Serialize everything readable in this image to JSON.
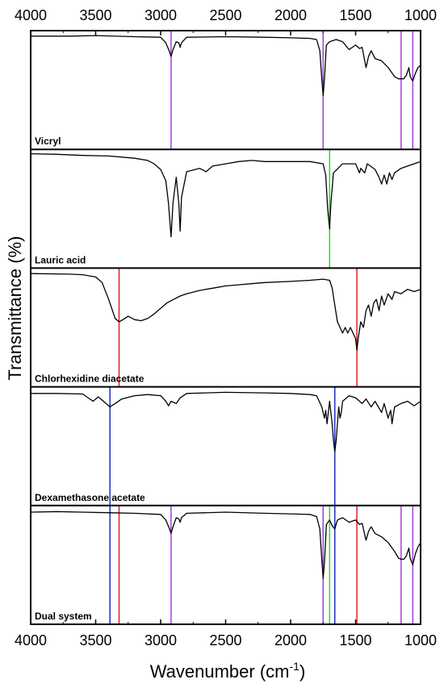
{
  "chart_data": {
    "type": "line",
    "xlabel_main": "Wavenumber (cm",
    "xlabel_sup": "-1",
    "xlabel_end": ")",
    "ylabel": "Transmittance (%)",
    "xlim": [
      4000,
      1000
    ],
    "x_reversed": true,
    "xticks": [
      4000,
      3500,
      3000,
      2500,
      2000,
      1500,
      1000
    ],
    "xtick_labels": [
      "4000",
      "3500",
      "3000",
      "2500",
      "2000",
      "1500",
      "1000"
    ],
    "ticks_top": true,
    "ticks_bottom": true,
    "y_ticks_shown": false,
    "marker_colors": {
      "purple": "#a040e0",
      "green": "#20e020",
      "red": "#e02020",
      "blue": "#2030c0"
    },
    "panels": [
      {
        "label": "Vicryl",
        "markers": [
          {
            "x": 2920,
            "color": "purple"
          },
          {
            "x": 1750,
            "color": "purple"
          },
          {
            "x": 1150,
            "color": "purple"
          },
          {
            "x": 1060,
            "color": "purple"
          }
        ],
        "spectrum": [
          [
            4000,
            0.98
          ],
          [
            3700,
            0.98
          ],
          [
            3500,
            0.985
          ],
          [
            3200,
            0.975
          ],
          [
            3000,
            0.97
          ],
          [
            2960,
            0.92
          ],
          [
            2935,
            0.85
          ],
          [
            2920,
            0.8
          ],
          [
            2905,
            0.86
          ],
          [
            2880,
            0.93
          ],
          [
            2860,
            0.92
          ],
          [
            2850,
            0.88
          ],
          [
            2840,
            0.92
          ],
          [
            2800,
            0.97
          ],
          [
            2500,
            0.975
          ],
          [
            2200,
            0.97
          ],
          [
            2000,
            0.965
          ],
          [
            1850,
            0.96
          ],
          [
            1800,
            0.95
          ],
          [
            1775,
            0.85
          ],
          [
            1760,
            0.6
          ],
          [
            1750,
            0.45
          ],
          [
            1740,
            0.6
          ],
          [
            1725,
            0.9
          ],
          [
            1700,
            0.93
          ],
          [
            1650,
            0.95
          ],
          [
            1600,
            0.93
          ],
          [
            1550,
            0.86
          ],
          [
            1500,
            0.9
          ],
          [
            1470,
            0.87
          ],
          [
            1450,
            0.88
          ],
          [
            1420,
            0.7
          ],
          [
            1400,
            0.8
          ],
          [
            1380,
            0.85
          ],
          [
            1350,
            0.78
          ],
          [
            1300,
            0.76
          ],
          [
            1250,
            0.7
          ],
          [
            1200,
            0.62
          ],
          [
            1170,
            0.6
          ],
          [
            1150,
            0.6
          ],
          [
            1130,
            0.6
          ],
          [
            1110,
            0.63
          ],
          [
            1090,
            0.7
          ],
          [
            1080,
            0.62
          ],
          [
            1060,
            0.58
          ],
          [
            1040,
            0.65
          ],
          [
            1020,
            0.7
          ],
          [
            1000,
            0.72
          ]
        ]
      },
      {
        "label": "Lauric acid",
        "markers": [
          {
            "x": 1700,
            "color": "green"
          }
        ],
        "spectrum": [
          [
            4000,
            0.99
          ],
          [
            3800,
            0.985
          ],
          [
            3600,
            0.975
          ],
          [
            3400,
            0.97
          ],
          [
            3200,
            0.95
          ],
          [
            3100,
            0.93
          ],
          [
            3050,
            0.9
          ],
          [
            3000,
            0.85
          ],
          [
            2960,
            0.75
          ],
          [
            2940,
            0.55
          ],
          [
            2920,
            0.25
          ],
          [
            2905,
            0.55
          ],
          [
            2880,
            0.78
          ],
          [
            2860,
            0.55
          ],
          [
            2850,
            0.3
          ],
          [
            2840,
            0.6
          ],
          [
            2800,
            0.83
          ],
          [
            2700,
            0.86
          ],
          [
            2650,
            0.83
          ],
          [
            2600,
            0.88
          ],
          [
            2500,
            0.9
          ],
          [
            2400,
            0.92
          ],
          [
            2300,
            0.93
          ],
          [
            2200,
            0.92
          ],
          [
            2000,
            0.92
          ],
          [
            1850,
            0.92
          ],
          [
            1750,
            0.9
          ],
          [
            1730,
            0.8
          ],
          [
            1715,
            0.5
          ],
          [
            1700,
            0.32
          ],
          [
            1690,
            0.55
          ],
          [
            1670,
            0.82
          ],
          [
            1600,
            0.9
          ],
          [
            1500,
            0.9
          ],
          [
            1470,
            0.82
          ],
          [
            1460,
            0.86
          ],
          [
            1430,
            0.82
          ],
          [
            1410,
            0.9
          ],
          [
            1350,
            0.85
          ],
          [
            1320,
            0.78
          ],
          [
            1300,
            0.72
          ],
          [
            1280,
            0.8
          ],
          [
            1260,
            0.72
          ],
          [
            1240,
            0.82
          ],
          [
            1220,
            0.76
          ],
          [
            1200,
            0.82
          ],
          [
            1150,
            0.86
          ],
          [
            1100,
            0.88
          ],
          [
            1050,
            0.9
          ],
          [
            1000,
            0.92
          ]
        ]
      },
      {
        "label": "Chlorhexidine diacetate",
        "markers": [
          {
            "x": 3320,
            "color": "red"
          },
          {
            "x": 1490,
            "color": "red"
          }
        ],
        "spectrum": [
          [
            4000,
            0.98
          ],
          [
            3700,
            0.975
          ],
          [
            3600,
            0.97
          ],
          [
            3500,
            0.95
          ],
          [
            3450,
            0.9
          ],
          [
            3400,
            0.75
          ],
          [
            3350,
            0.58
          ],
          [
            3320,
            0.55
          ],
          [
            3290,
            0.57
          ],
          [
            3250,
            0.6
          ],
          [
            3200,
            0.57
          ],
          [
            3150,
            0.56
          ],
          [
            3100,
            0.58
          ],
          [
            3050,
            0.62
          ],
          [
            3000,
            0.67
          ],
          [
            2950,
            0.72
          ],
          [
            2900,
            0.75
          ],
          [
            2850,
            0.78
          ],
          [
            2800,
            0.8
          ],
          [
            2700,
            0.83
          ],
          [
            2600,
            0.85
          ],
          [
            2500,
            0.87
          ],
          [
            2400,
            0.88
          ],
          [
            2300,
            0.89
          ],
          [
            2200,
            0.9
          ],
          [
            2000,
            0.91
          ],
          [
            1850,
            0.92
          ],
          [
            1750,
            0.93
          ],
          [
            1700,
            0.92
          ],
          [
            1680,
            0.85
          ],
          [
            1660,
            0.7
          ],
          [
            1640,
            0.55
          ],
          [
            1620,
            0.5
          ],
          [
            1600,
            0.45
          ],
          [
            1580,
            0.5
          ],
          [
            1560,
            0.45
          ],
          [
            1540,
            0.5
          ],
          [
            1500,
            0.4
          ],
          [
            1490,
            0.3
          ],
          [
            1480,
            0.4
          ],
          [
            1460,
            0.55
          ],
          [
            1440,
            0.5
          ],
          [
            1420,
            0.65
          ],
          [
            1400,
            0.7
          ],
          [
            1380,
            0.6
          ],
          [
            1360,
            0.72
          ],
          [
            1340,
            0.75
          ],
          [
            1320,
            0.65
          ],
          [
            1300,
            0.78
          ],
          [
            1280,
            0.7
          ],
          [
            1250,
            0.8
          ],
          [
            1220,
            0.75
          ],
          [
            1200,
            0.82
          ],
          [
            1150,
            0.8
          ],
          [
            1100,
            0.84
          ],
          [
            1050,
            0.82
          ],
          [
            1000,
            0.84
          ]
        ]
      },
      {
        "label": "Dexamethasone acetate",
        "markers": [
          {
            "x": 3390,
            "color": "blue"
          },
          {
            "x": 1660,
            "color": "blue"
          }
        ],
        "spectrum": [
          [
            4000,
            0.97
          ],
          [
            3800,
            0.97
          ],
          [
            3600,
            0.965
          ],
          [
            3520,
            0.9
          ],
          [
            3480,
            0.94
          ],
          [
            3420,
            0.88
          ],
          [
            3390,
            0.85
          ],
          [
            3350,
            0.88
          ],
          [
            3300,
            0.92
          ],
          [
            3200,
            0.95
          ],
          [
            3100,
            0.96
          ],
          [
            3000,
            0.95
          ],
          [
            2960,
            0.9
          ],
          [
            2940,
            0.86
          ],
          [
            2920,
            0.9
          ],
          [
            2880,
            0.88
          ],
          [
            2850,
            0.93
          ],
          [
            2800,
            0.97
          ],
          [
            2500,
            0.98
          ],
          [
            2200,
            0.975
          ],
          [
            2000,
            0.97
          ],
          [
            1850,
            0.96
          ],
          [
            1800,
            0.95
          ],
          [
            1760,
            0.85
          ],
          [
            1740,
            0.75
          ],
          [
            1730,
            0.82
          ],
          [
            1720,
            0.7
          ],
          [
            1710,
            0.8
          ],
          [
            1700,
            0.9
          ],
          [
            1680,
            0.7
          ],
          [
            1670,
            0.55
          ],
          [
            1660,
            0.45
          ],
          [
            1650,
            0.55
          ],
          [
            1630,
            0.85
          ],
          [
            1620,
            0.75
          ],
          [
            1610,
            0.8
          ],
          [
            1600,
            0.9
          ],
          [
            1550,
            0.95
          ],
          [
            1500,
            0.93
          ],
          [
            1450,
            0.88
          ],
          [
            1420,
            0.92
          ],
          [
            1380,
            0.85
          ],
          [
            1350,
            0.9
          ],
          [
            1300,
            0.8
          ],
          [
            1280,
            0.88
          ],
          [
            1250,
            0.75
          ],
          [
            1230,
            0.82
          ],
          [
            1220,
            0.7
          ],
          [
            1200,
            0.85
          ],
          [
            1150,
            0.88
          ],
          [
            1100,
            0.9
          ],
          [
            1050,
            0.86
          ],
          [
            1000,
            0.9
          ]
        ]
      },
      {
        "label": "Dual system",
        "markers": [
          {
            "x": 3390,
            "color": "blue"
          },
          {
            "x": 3320,
            "color": "red"
          },
          {
            "x": 2920,
            "color": "purple"
          },
          {
            "x": 1750,
            "color": "purple"
          },
          {
            "x": 1700,
            "color": "green"
          },
          {
            "x": 1660,
            "color": "blue"
          },
          {
            "x": 1490,
            "color": "red"
          },
          {
            "x": 1150,
            "color": "purple"
          },
          {
            "x": 1060,
            "color": "purple"
          }
        ],
        "spectrum": [
          [
            4000,
            0.97
          ],
          [
            3800,
            0.975
          ],
          [
            3600,
            0.97
          ],
          [
            3400,
            0.965
          ],
          [
            3200,
            0.96
          ],
          [
            3000,
            0.95
          ],
          [
            2960,
            0.9
          ],
          [
            2935,
            0.83
          ],
          [
            2920,
            0.78
          ],
          [
            2905,
            0.84
          ],
          [
            2880,
            0.92
          ],
          [
            2860,
            0.91
          ],
          [
            2850,
            0.88
          ],
          [
            2840,
            0.92
          ],
          [
            2800,
            0.96
          ],
          [
            2500,
            0.97
          ],
          [
            2200,
            0.96
          ],
          [
            2000,
            0.955
          ],
          [
            1850,
            0.95
          ],
          [
            1800,
            0.93
          ],
          [
            1775,
            0.82
          ],
          [
            1760,
            0.55
          ],
          [
            1750,
            0.38
          ],
          [
            1740,
            0.52
          ],
          [
            1725,
            0.86
          ],
          [
            1700,
            0.9
          ],
          [
            1680,
            0.85
          ],
          [
            1660,
            0.82
          ],
          [
            1640,
            0.9
          ],
          [
            1600,
            0.92
          ],
          [
            1550,
            0.88
          ],
          [
            1500,
            0.9
          ],
          [
            1470,
            0.86
          ],
          [
            1450,
            0.87
          ],
          [
            1420,
            0.72
          ],
          [
            1400,
            0.8
          ],
          [
            1380,
            0.84
          ],
          [
            1350,
            0.78
          ],
          [
            1300,
            0.75
          ],
          [
            1250,
            0.7
          ],
          [
            1200,
            0.62
          ],
          [
            1170,
            0.56
          ],
          [
            1150,
            0.55
          ],
          [
            1130,
            0.55
          ],
          [
            1110,
            0.58
          ],
          [
            1090,
            0.65
          ],
          [
            1080,
            0.56
          ],
          [
            1060,
            0.5
          ],
          [
            1040,
            0.6
          ],
          [
            1020,
            0.66
          ],
          [
            1000,
            0.7
          ]
        ]
      }
    ]
  }
}
